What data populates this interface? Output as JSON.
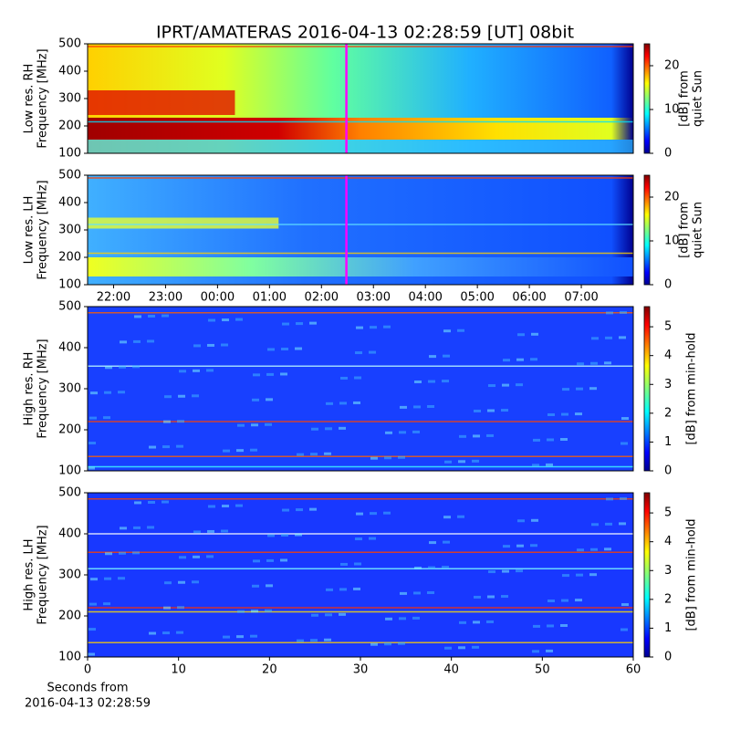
{
  "title": "IPRT/AMATERAS 2016-04-13 02:28:59 [UT]   08bit",
  "chart_data": [
    {
      "type": "heatmap",
      "ylabel": [
        "Low res. RH",
        "Frequency [MHz]"
      ],
      "ylim": [
        100,
        500
      ],
      "yticks": [
        100,
        200,
        300,
        400,
        500
      ],
      "xlim": [
        21.5,
        32
      ],
      "marker_x": 26.48,
      "marker_color": "#ff00ff",
      "colorbar": {
        "label": [
          "[dB] from",
          "quiet Sun"
        ],
        "lim": [
          0,
          25
        ],
        "ticks": [
          0,
          10,
          20
        ]
      }
    },
    {
      "type": "heatmap",
      "ylabel": [
        "Low res. LH",
        "Frequency [MHz]"
      ],
      "ylim": [
        100,
        500
      ],
      "yticks": [
        100,
        200,
        300,
        400,
        500
      ],
      "xlim": [
        21.5,
        32
      ],
      "xticks": [
        {
          "value": 22,
          "label": "22:00"
        },
        {
          "value": 23,
          "label": "23:00"
        },
        {
          "value": 24,
          "label": "00:00"
        },
        {
          "value": 25,
          "label": "01:00"
        },
        {
          "value": 26,
          "label": "02:00"
        },
        {
          "value": 27,
          "label": "03:00"
        },
        {
          "value": 28,
          "label": "04:00"
        },
        {
          "value": 29,
          "label": "05:00"
        },
        {
          "value": 30,
          "label": "06:00"
        },
        {
          "value": 31,
          "label": "07:00"
        }
      ],
      "marker_x": 26.48,
      "marker_color": "#ff00ff",
      "colorbar": {
        "label": [
          "[dB] from",
          "quiet Sun"
        ],
        "lim": [
          0,
          25
        ],
        "ticks": [
          0,
          10,
          20
        ]
      }
    },
    {
      "type": "heatmap",
      "ylabel": [
        "High res. RH",
        "Frequency [MHz]"
      ],
      "ylim": [
        100,
        500
      ],
      "yticks": [
        100,
        200,
        300,
        400,
        500
      ],
      "xlim": [
        0,
        60
      ],
      "colorbar": {
        "label": [
          "[dB] from min-hold"
        ],
        "lim": [
          0,
          5.7
        ],
        "ticks": [
          0,
          1,
          2,
          3,
          4,
          5
        ]
      }
    },
    {
      "type": "heatmap",
      "ylabel": [
        "High res. LH",
        "Frequency [MHz]"
      ],
      "ylim": [
        100,
        500
      ],
      "yticks": [
        100,
        200,
        300,
        400,
        500
      ],
      "xlim": [
        0,
        60
      ],
      "xticks": [
        0,
        10,
        20,
        30,
        40,
        50,
        60
      ],
      "xlabel": [
        "Seconds from",
        "2016-04-13 02:28:59"
      ],
      "colorbar": {
        "label": [
          "[dB] from min-hold"
        ],
        "lim": [
          0,
          5.7
        ],
        "ticks": [
          0,
          1,
          2,
          3,
          4,
          5
        ]
      }
    }
  ]
}
